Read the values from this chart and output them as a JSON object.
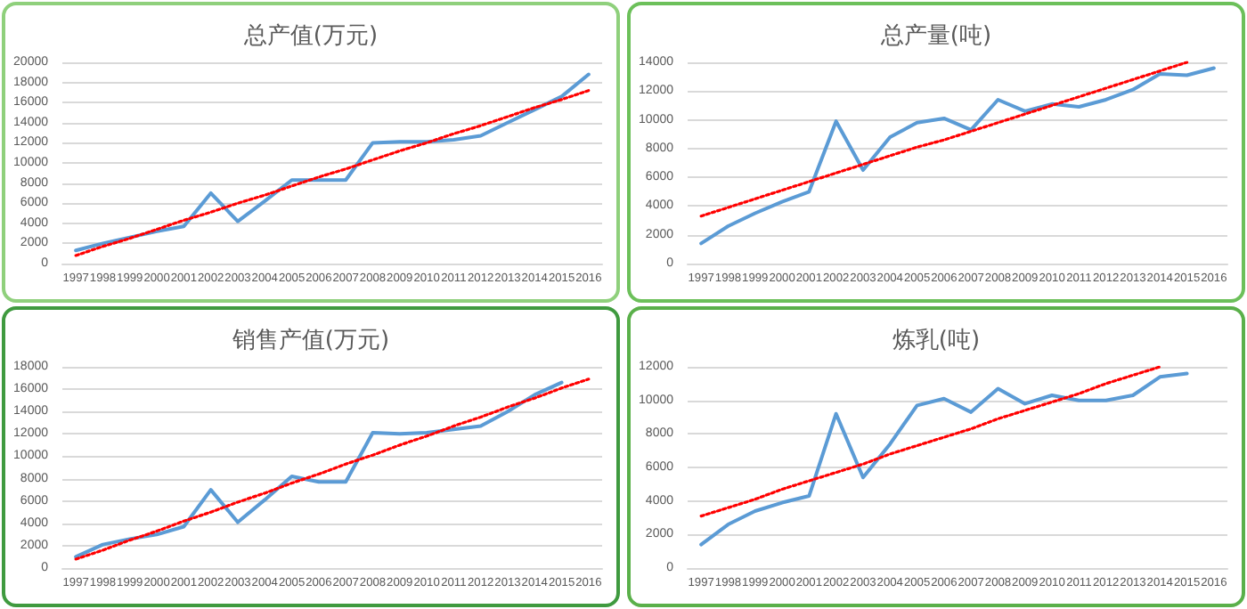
{
  "chart_data": [
    {
      "type": "line",
      "title": "总产值(万元)",
      "categories": [
        "1997",
        "1998",
        "1999",
        "2000",
        "2001",
        "2002",
        "2003",
        "2004",
        "2005",
        "2006",
        "2007",
        "2008",
        "2009",
        "2010",
        "2011",
        "2012",
        "2013",
        "2014",
        "2015",
        "2016"
      ],
      "series": [
        {
          "color": "#5b9bd5",
          "line_style": "solid",
          "values": [
            1300,
            2000,
            2600,
            3200,
            3700,
            7000,
            4200,
            6200,
            8300,
            8300,
            8300,
            12000,
            12100,
            12100,
            12300,
            12700,
            14000,
            15300,
            16600,
            18800
          ]
        },
        {
          "color": "#ff0000",
          "line_style": "dotted",
          "values": [
            800,
            1700,
            2500,
            3400,
            4300,
            5100,
            6000,
            6800,
            7700,
            8600,
            9400,
            10300,
            11200,
            12000,
            12900,
            13700,
            14600,
            15500,
            16300,
            17200
          ]
        }
      ],
      "ylim": [
        0,
        20000
      ],
      "yticks": [
        0,
        2000,
        4000,
        6000,
        8000,
        10000,
        12000,
        14000,
        16000,
        18000,
        20000
      ],
      "grid": "y",
      "marker": "none"
    },
    {
      "type": "line",
      "title": "总产量(吨)",
      "categories": [
        "1997",
        "1998",
        "1999",
        "2000",
        "2001",
        "2002",
        "2003",
        "2004",
        "2005",
        "2006",
        "2007",
        "2008",
        "2009",
        "2010",
        "2011",
        "2012",
        "2013",
        "2014",
        "2015",
        "2016"
      ],
      "series": [
        {
          "color": "#5b9bd5",
          "line_style": "solid",
          "values": [
            1400,
            2600,
            3500,
            4300,
            5000,
            9900,
            6500,
            8800,
            9800,
            10100,
            9300,
            11400,
            10600,
            11100,
            10900,
            11400,
            12100,
            13200,
            13100,
            13600
          ]
        },
        {
          "color": "#ff0000",
          "line_style": "dotted",
          "values": [
            3300,
            3900,
            4500,
            5100,
            5700,
            6300,
            6900,
            7500,
            8100,
            8600,
            9200,
            9800,
            10400,
            11000,
            11600,
            12200,
            12800,
            13400,
            14000,
            null
          ]
        }
      ],
      "ylim": [
        0,
        14000
      ],
      "yticks": [
        0,
        2000,
        4000,
        6000,
        8000,
        10000,
        12000,
        14000
      ],
      "grid": "y",
      "marker": "none"
    },
    {
      "type": "line",
      "title": "销售产值(万元)",
      "categories": [
        "1997",
        "1998",
        "1999",
        "2000",
        "2001",
        "2002",
        "2003",
        "2004",
        "2005",
        "2006",
        "2007",
        "2008",
        "2009",
        "2010",
        "2011",
        "2012",
        "2013",
        "2014",
        "2015",
        "2016"
      ],
      "series": [
        {
          "color": "#5b9bd5",
          "line_style": "solid",
          "values": [
            1000,
            2100,
            2600,
            3000,
            3700,
            7000,
            4100,
            6100,
            8200,
            7700,
            7700,
            12100,
            12000,
            12100,
            12400,
            12700,
            14000,
            15500,
            16600,
            null
          ]
        },
        {
          "color": "#ff0000",
          "line_style": "dotted",
          "values": [
            800,
            1600,
            2500,
            3300,
            4200,
            5000,
            5900,
            6700,
            7600,
            8400,
            9300,
            10100,
            11000,
            11800,
            12700,
            13500,
            14400,
            15200,
            16100,
            16900
          ]
        }
      ],
      "ylim": [
        0,
        18000
      ],
      "yticks": [
        0,
        2000,
        4000,
        6000,
        8000,
        10000,
        12000,
        14000,
        16000,
        18000
      ],
      "grid": "y",
      "marker": "none"
    },
    {
      "type": "line",
      "title": "炼乳(吨)",
      "categories": [
        "1997",
        "1998",
        "1999",
        "2000",
        "2001",
        "2002",
        "2003",
        "2004",
        "2005",
        "2006",
        "2007",
        "2008",
        "2009",
        "2010",
        "2011",
        "2012",
        "2013",
        "2014",
        "2015",
        "2016"
      ],
      "series": [
        {
          "color": "#5b9bd5",
          "line_style": "solid",
          "values": [
            1400,
            2600,
            3400,
            3900,
            4300,
            9200,
            5400,
            7400,
            9700,
            10100,
            9300,
            10700,
            9800,
            10300,
            10000,
            10000,
            10300,
            11400,
            11600,
            null
          ]
        },
        {
          "color": "#ff0000",
          "line_style": "dotted",
          "values": [
            3100,
            3600,
            4100,
            4700,
            5200,
            5700,
            6200,
            6800,
            7300,
            7800,
            8300,
            8900,
            9400,
            9900,
            10400,
            11000,
            11500,
            12000,
            null,
            null
          ]
        }
      ],
      "ylim": [
        0,
        12000
      ],
      "yticks": [
        0,
        2000,
        4000,
        6000,
        8000,
        10000,
        12000
      ],
      "grid": "y",
      "marker": "none"
    }
  ]
}
